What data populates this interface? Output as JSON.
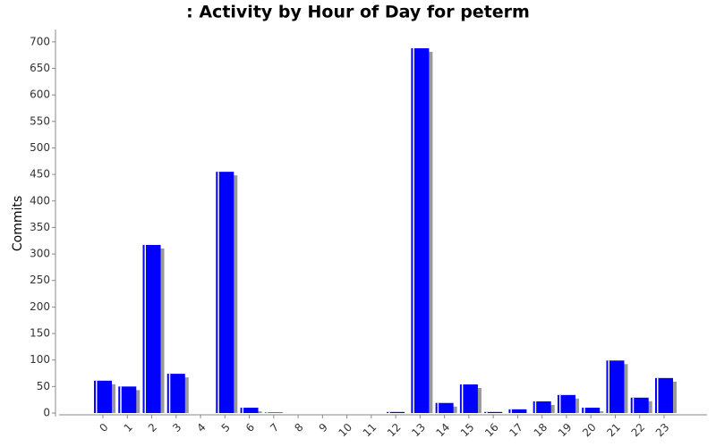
{
  "chart_data": {
    "type": "bar",
    "title": ": Activity by Hour of Day for peterm",
    "y_label": "Commits",
    "categories": [
      "0",
      "1",
      "2",
      "3",
      "4",
      "5",
      "6",
      "7",
      "8",
      "9",
      "10",
      "11",
      "12",
      "13",
      "14",
      "15",
      "16",
      "17",
      "18",
      "19",
      "20",
      "21",
      "22",
      "23"
    ],
    "values": [
      61,
      50,
      317,
      74,
      0,
      455,
      10,
      1,
      0,
      0,
      0,
      0,
      2,
      688,
      19,
      54,
      2,
      7,
      22,
      34,
      10,
      99,
      29,
      66
    ],
    "color": "#0000ff",
    "ylim": [
      0,
      720
    ],
    "yticks": [
      0,
      50,
      100,
      150,
      200,
      250,
      300,
      350,
      400,
      450,
      500,
      550,
      600,
      650,
      700
    ]
  }
}
